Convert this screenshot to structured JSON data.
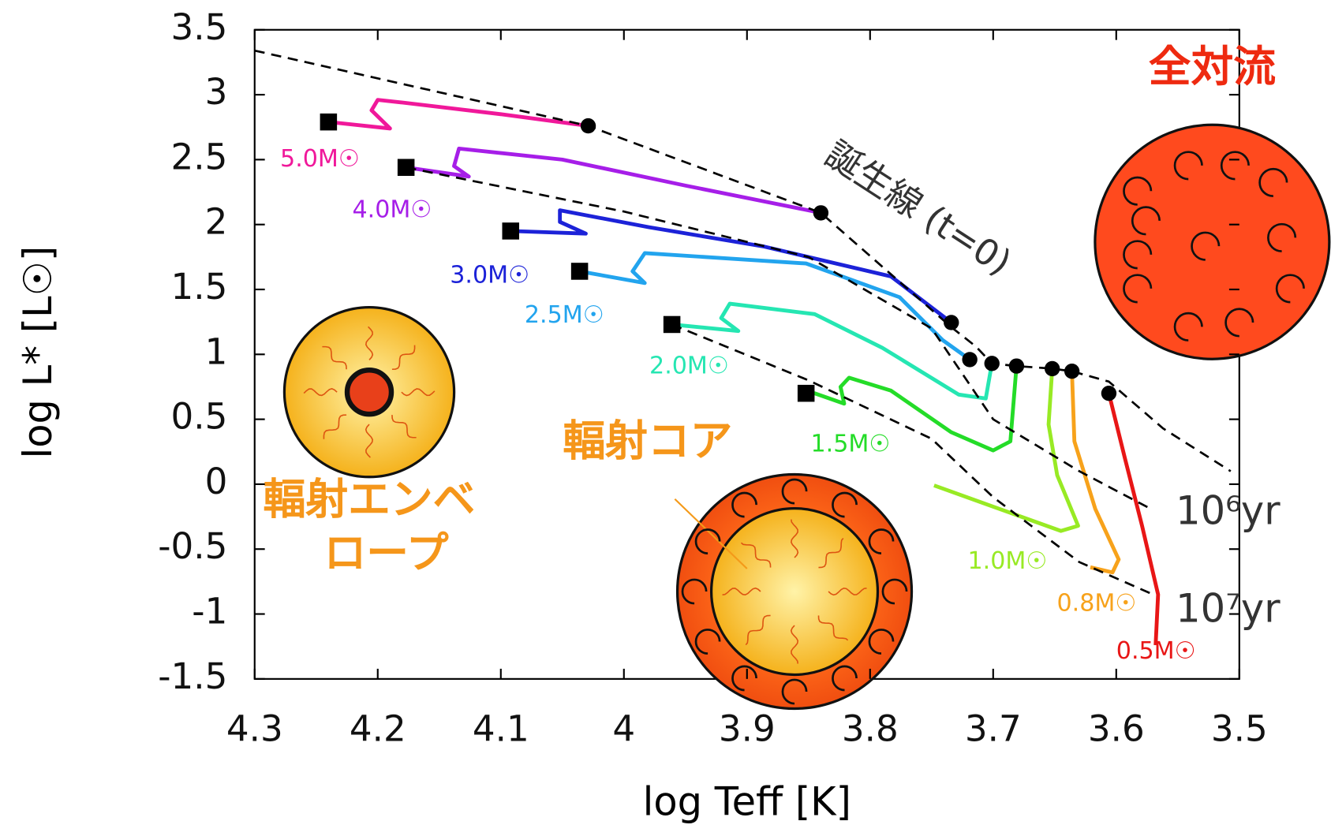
{
  "chart_data": {
    "type": "line",
    "xlabel": "log Teff [K]",
    "ylabel": "log L* [L☉]",
    "xlim": [
      4.3,
      3.5
    ],
    "ylim": [
      -1.5,
      3.5
    ],
    "xticks": [
      4.3,
      4.2,
      4.1,
      4,
      3.9,
      3.8,
      3.7,
      3.6,
      3.5
    ],
    "yticks": [
      3.5,
      3,
      2.5,
      2,
      1.5,
      1,
      0.5,
      0,
      -0.5,
      -1,
      -1.5
    ],
    "annotations": [
      "全対流",
      "輻射コア",
      "輻射エンベ",
      "ロープ"
    ],
    "series": [
      {
        "name": "5.0M☉",
        "color": "#f0189a",
        "style": "track",
        "x": [
          4.029,
          4.1,
          4.18,
          4.2,
          4.205,
          4.19,
          4.24
        ],
        "values": [
          2.76,
          2.85,
          2.94,
          2.96,
          2.88,
          2.74,
          2.79
        ]
      },
      {
        "name": "4.0M☉",
        "color": "#a61ee8",
        "style": "track",
        "x": [
          3.84,
          3.95,
          4.05,
          4.134,
          4.138,
          4.126,
          4.177
        ],
        "values": [
          2.09,
          2.3,
          2.5,
          2.585,
          2.45,
          2.37,
          2.44
        ]
      },
      {
        "name": "3.0M☉",
        "color": "#1c22d8",
        "style": "track",
        "x": [
          3.734,
          3.783,
          3.886,
          3.98,
          4.052,
          4.052,
          4.031,
          4.092
        ],
        "values": [
          1.245,
          1.6,
          1.83,
          1.98,
          2.11,
          2.02,
          1.93,
          1.95
        ]
      },
      {
        "name": "2.5M☉",
        "color": "#22a4ee",
        "style": "track",
        "x": [
          3.719,
          3.741,
          3.776,
          3.852,
          3.983,
          3.993,
          3.983,
          4.036
        ],
        "values": [
          0.96,
          1.11,
          1.44,
          1.7,
          1.78,
          1.64,
          1.55,
          1.64
        ]
      },
      {
        "name": "2.0M☉",
        "color": "#25e6b2",
        "style": "track",
        "x": [
          3.701,
          3.706,
          3.728,
          3.79,
          3.845,
          3.914,
          3.921,
          3.907,
          3.961
        ],
        "values": [
          0.93,
          0.66,
          0.69,
          1.05,
          1.31,
          1.39,
          1.28,
          1.18,
          1.23
        ]
      },
      {
        "name": "1.5M☉",
        "color": "#24dc28",
        "style": "track",
        "x": [
          3.681,
          3.686,
          3.7,
          3.734,
          3.783,
          3.817,
          3.824,
          3.821,
          3.845,
          3.852
        ],
        "values": [
          0.91,
          0.33,
          0.26,
          0.4,
          0.72,
          0.82,
          0.75,
          0.62,
          0.7,
          0.7
        ]
      },
      {
        "name": "1.0M☉",
        "color": "#98ea24",
        "style": "track",
        "x": [
          3.652,
          3.655,
          3.648,
          3.631,
          3.645,
          3.748
        ],
        "values": [
          0.89,
          0.46,
          0.07,
          -0.32,
          -0.36,
          -0.01
        ]
      },
      {
        "name": "0.8M☉",
        "color": "#f7a21b",
        "style": "track",
        "x": [
          3.636,
          3.634,
          3.617,
          3.598,
          3.603,
          3.621
        ],
        "values": [
          0.87,
          0.33,
          -0.19,
          -0.58,
          -0.68,
          -0.64
        ]
      },
      {
        "name": "0.5M☉",
        "color": "#e81616",
        "style": "track",
        "x": [
          3.606,
          3.593,
          3.579,
          3.566,
          3.568
        ],
        "values": [
          0.7,
          0.2,
          -0.32,
          -0.85,
          -1.24
        ]
      },
      {
        "name": "誕生線 (t=0)",
        "color": "#000000",
        "style": "dashed",
        "x": [
          4.3,
          4.029,
          3.84,
          3.734,
          3.714,
          3.701,
          3.681,
          3.652,
          3.636,
          3.606,
          3.562,
          3.507
        ],
        "values": [
          3.34,
          2.76,
          2.09,
          1.21,
          1.06,
          0.93,
          0.91,
          0.89,
          0.87,
          0.79,
          0.43,
          0.1
        ]
      },
      {
        "name": "10⁶yr",
        "color": "#000000",
        "style": "dashed",
        "x": [
          4.177,
          4.0,
          3.85,
          3.75,
          3.7,
          3.63,
          3.57
        ],
        "values": [
          2.44,
          2.1,
          1.75,
          1.2,
          0.5,
          0.1,
          -0.2
        ]
      },
      {
        "name": "10⁷yr",
        "color": "#000000",
        "style": "dashed",
        "x": [
          3.961,
          3.85,
          3.75,
          3.7,
          3.63,
          3.57
        ],
        "values": [
          1.23,
          0.8,
          0.35,
          -0.1,
          -0.6,
          -0.85
        ]
      }
    ]
  }
}
